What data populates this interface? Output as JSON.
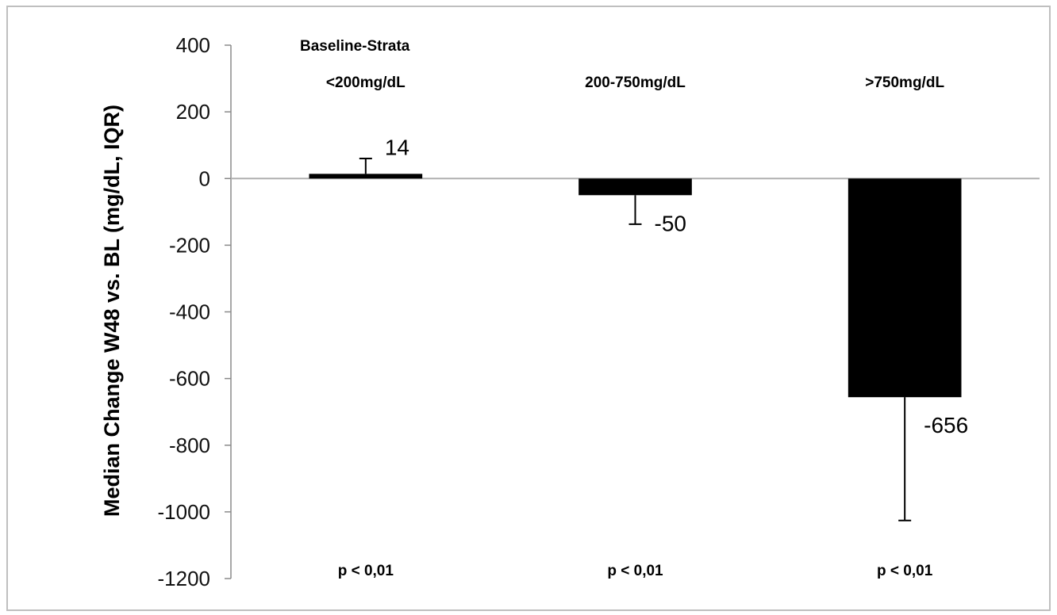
{
  "chart_data": {
    "type": "bar",
    "annotation_title": "Baseline-Strata",
    "categories": [
      "<200mg/dL",
      "200-750mg/dL",
      ">750mg/dL"
    ],
    "values": [
      14,
      -50,
      -656
    ],
    "value_labels": [
      "14",
      "-50",
      "-656"
    ],
    "error_bars": [
      {
        "direction": "up",
        "end": 60
      },
      {
        "direction": "down",
        "end": -137
      },
      {
        "direction": "down",
        "end": -1026
      }
    ],
    "p_values": [
      "p < 0,01",
      "p < 0,01",
      "p < 0,01"
    ],
    "ylabel": "Median Change W48 vs. BL (mg/dL, IQR)",
    "ylim": [
      -1200,
      400
    ],
    "yticks": [
      400,
      200,
      0,
      -200,
      -400,
      -600,
      -800,
      -1000,
      -1200
    ],
    "ytick_labels": [
      "400",
      "200",
      "0",
      "-200",
      "-400",
      "-600",
      "-800",
      "-1000",
      "-1200"
    ],
    "grid": false,
    "bar_color": "#000000",
    "zero_line_color": "#b0b0b0"
  }
}
